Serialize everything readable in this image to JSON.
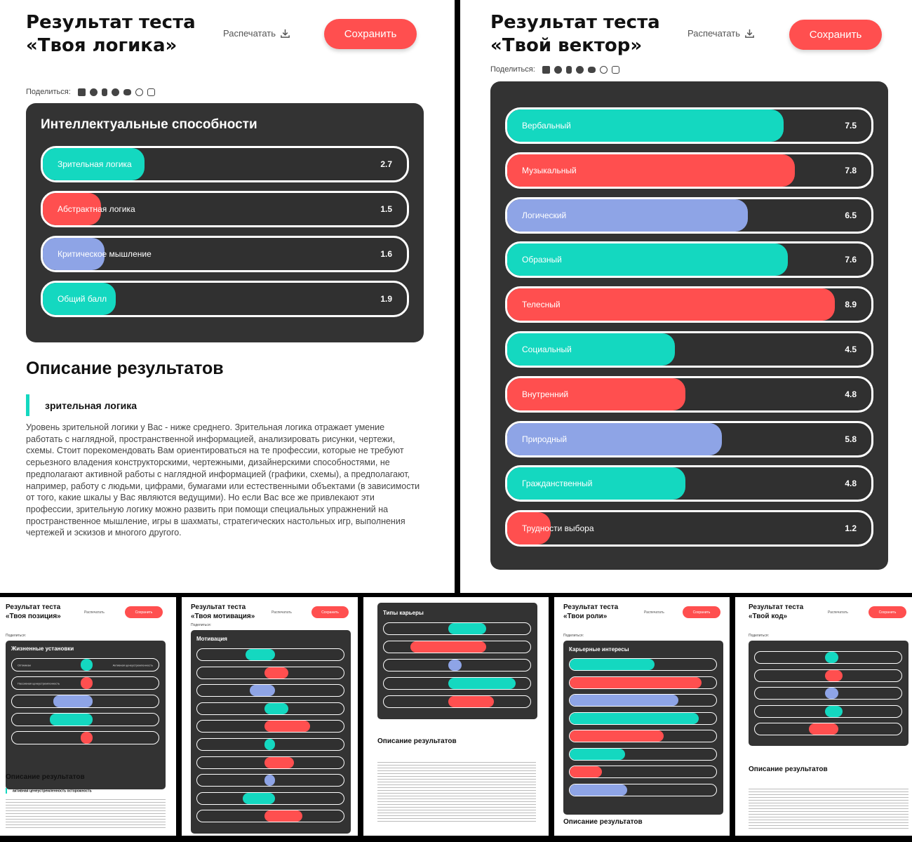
{
  "colors": {
    "teal": "#14d8c0",
    "red": "#ff4f4f",
    "blue": "#8ea4e6",
    "card": "#333333"
  },
  "common": {
    "print_label": "Распечатать",
    "print_icon": "download-icon",
    "save_label": "Сохранить",
    "share_label": "Поделиться:",
    "social_icons": [
      "vk-icon",
      "facebook-icon",
      "odnoklassniki-icon",
      "telegram-icon",
      "twitter-icon",
      "whatsapp-icon",
      "viber-icon"
    ],
    "desc_heading": "Описание результатов"
  },
  "panel1": {
    "title_line1": "Результат теста",
    "title_line2": "«Твоя логика»",
    "card_title": "Интеллектуальные способности",
    "bars": [
      {
        "label": "Зрительная логика",
        "value": "2.7",
        "fill": 0.28,
        "color": "teal"
      },
      {
        "label": "Абстрактная логика",
        "value": "1.5",
        "fill": 0.16,
        "color": "red"
      },
      {
        "label": "Критическое мышление",
        "value": "1.6",
        "fill": 0.17,
        "color": "blue"
      },
      {
        "label": "Общий балл",
        "value": "1.9",
        "fill": 0.2,
        "color": "teal"
      }
    ],
    "desc_sub": "зрительная логика",
    "desc_text": "Уровень зрительной логики у Вас - ниже среднего. Зрительная логика отражает умение работать с наглядной, пространственной информацией, анализировать рисунки, чертежи, схемы. Стоит порекомендовать Вам ориентироваться на те профессии, которые не требуют серьезного владения конструкторскими, чертежными, дизайнерскими способностями, не предполагают активной работы с наглядной информацией (графики, схемы), а предполагают, например, работу с людьми, цифрами, бумагами или естественными объектами (в зависимости от того, какие шкалы у Вас являются ведущими). Но если Вас все же привлекают эти профессии, зрительную логику можно развить при помощи специальных упражнений на пространственное мышление, игры в шахматы, стратегических настольных игр, выполнения чертежей и эскизов и многого другого."
  },
  "panel2": {
    "title_line1": "Результат теста",
    "title_line2": "«Твой вектор»",
    "bars": [
      {
        "label": "Вербальный",
        "value": "7.5",
        "fill": 0.76,
        "color": "teal"
      },
      {
        "label": "Музыкальный",
        "value": "7.8",
        "fill": 0.79,
        "color": "red"
      },
      {
        "label": "Логический",
        "value": "6.5",
        "fill": 0.66,
        "color": "blue"
      },
      {
        "label": "Образный",
        "value": "7.6",
        "fill": 0.77,
        "color": "teal"
      },
      {
        "label": "Телесный",
        "value": "8.9",
        "fill": 0.9,
        "color": "red"
      },
      {
        "label": "Социальный",
        "value": "4.5",
        "fill": 0.46,
        "color": "teal"
      },
      {
        "label": "Внутренний",
        "value": "4.8",
        "fill": 0.49,
        "color": "red"
      },
      {
        "label": "Природный",
        "value": "5.8",
        "fill": 0.59,
        "color": "blue"
      },
      {
        "label": "Гражданственный",
        "value": "4.8",
        "fill": 0.49,
        "color": "teal"
      },
      {
        "label": "Трудности выбора",
        "value": "1.2",
        "fill": 0.12,
        "color": "red"
      }
    ]
  },
  "mini1": {
    "title_line1": "Результат теста",
    "title_line2": "«Твоя позиция»",
    "card_title": "Жизненные установки",
    "rows": [
      {
        "left": "Оптимизм",
        "right": "Активная ценеустремленность",
        "color": "teal",
        "start": 0.47,
        "end": 0.55
      },
      {
        "left": "Пассивная ценеустремленность",
        "right": "",
        "color": "red",
        "start": 0.47,
        "end": 0.55
      },
      {
        "left": "",
        "right": "",
        "color": "blue",
        "start": 0.28,
        "end": 0.55
      },
      {
        "left": "",
        "right": "",
        "color": "teal",
        "start": 0.26,
        "end": 0.55
      },
      {
        "left": "",
        "right": "",
        "color": "red",
        "start": 0.47,
        "end": 0.55
      }
    ],
    "sub": "активная ценеустремленность   осторожность"
  },
  "mini2": {
    "title_line1": "Результат теста",
    "title_line2": "«Твоя мотивация»",
    "card_title": "Мотивация",
    "rows": [
      {
        "color": "teal",
        "start": 0.33,
        "end": 0.53
      },
      {
        "color": "red",
        "start": 0.46,
        "end": 0.62
      },
      {
        "color": "blue",
        "start": 0.36,
        "end": 0.53
      },
      {
        "color": "teal",
        "start": 0.46,
        "end": 0.62
      },
      {
        "color": "red",
        "start": 0.46,
        "end": 0.77
      },
      {
        "color": "teal",
        "start": 0.46,
        "end": 0.53
      },
      {
        "color": "red",
        "start": 0.46,
        "end": 0.66
      },
      {
        "color": "blue",
        "start": 0.46,
        "end": 0.53
      },
      {
        "color": "teal",
        "start": 0.31,
        "end": 0.53
      },
      {
        "color": "red",
        "start": 0.46,
        "end": 0.72
      }
    ]
  },
  "mini3": {
    "card_title": "Типы карьеры",
    "rows": [
      {
        "color": "teal",
        "start": 0.44,
        "end": 0.7
      },
      {
        "color": "red",
        "start": 0.18,
        "end": 0.7
      },
      {
        "color": "blue",
        "start": 0.44,
        "end": 0.53
      },
      {
        "color": "teal",
        "start": 0.44,
        "end": 0.9
      },
      {
        "color": "red",
        "start": 0.44,
        "end": 0.75
      }
    ]
  },
  "mini4": {
    "title_line1": "Результат теста",
    "title_line2": "«Твои роли»",
    "card_title": "Карьерные интересы",
    "rows": [
      {
        "color": "teal",
        "fill": 0.58
      },
      {
        "color": "red",
        "fill": 0.9
      },
      {
        "color": "blue",
        "fill": 0.74
      },
      {
        "color": "teal",
        "fill": 0.88
      },
      {
        "color": "red",
        "fill": 0.64
      },
      {
        "color": "teal",
        "fill": 0.38
      },
      {
        "color": "red",
        "fill": 0.22
      },
      {
        "color": "blue",
        "fill": 0.39
      }
    ]
  },
  "mini5": {
    "title_line1": "Результат теста",
    "title_line2": "«Твой код»",
    "rows": [
      {
        "color": "teal",
        "start": 0.48,
        "end": 0.57
      },
      {
        "color": "red",
        "start": 0.48,
        "end": 0.6
      },
      {
        "color": "blue",
        "start": 0.48,
        "end": 0.57
      },
      {
        "color": "teal",
        "start": 0.48,
        "end": 0.6
      },
      {
        "color": "red",
        "start": 0.37,
        "end": 0.57
      }
    ]
  }
}
